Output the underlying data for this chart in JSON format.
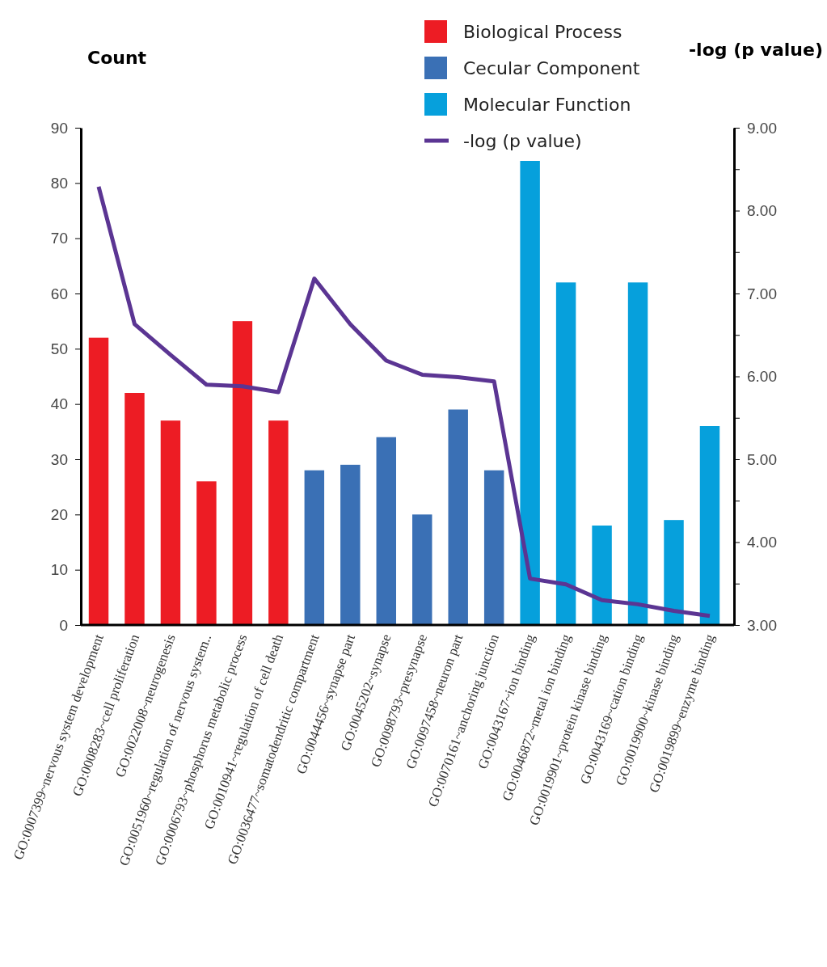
{
  "chart_data": {
    "type": "bar",
    "ylabel": "Count",
    "y2label": "-log (p value)",
    "legend": "top right",
    "categories": [
      "GO:0007399~nervous system development",
      "GO:0008283~cell proliferation",
      "GO:0022008~neurogenesis",
      "GO:0051960~regulation of nervous system..",
      "GO:0006793~phosphorus metabolic process",
      "GO:0010941~regulation of cell death",
      "GO:0036477~somatodendritic compartment",
      "GO:0044456~synapse part",
      "GO:0045202~synapse",
      "GO:0098793~presynapse",
      "GO:0097458~neuron part",
      "GO:0070161~anchoring junction",
      "GO:0043167~ion binding",
      "GO:0046872~metal ion binding",
      "GO:0019901~protein kinase binding",
      "GO:0043169~cation binding",
      "GO:0019900~kinase binding",
      "GO:0019899~enzyme binding"
    ],
    "series": [
      {
        "name": "Biological Process",
        "color": "#ed1c24",
        "values": [
          52,
          42,
          37,
          26,
          55,
          37,
          null,
          null,
          null,
          null,
          null,
          null,
          null,
          null,
          null,
          null,
          null,
          null
        ]
      },
      {
        "name": "Cecular Component",
        "color": "#3a70b5",
        "values": [
          null,
          null,
          null,
          null,
          null,
          null,
          28,
          29,
          34,
          20,
          39,
          28,
          null,
          null,
          null,
          null,
          null,
          null
        ]
      },
      {
        "name": "Molecular Function",
        "color": "#06a0dc",
        "values": [
          null,
          null,
          null,
          null,
          null,
          null,
          null,
          null,
          null,
          null,
          null,
          null,
          84,
          62,
          18,
          62,
          19,
          36
        ]
      },
      {
        "name": "-log (p value)",
        "type": "line",
        "axis": "y2",
        "color": "#5b3593",
        "values": [
          8.29,
          6.63,
          6.26,
          5.9,
          5.88,
          5.81,
          7.18,
          6.63,
          6.19,
          6.02,
          5.99,
          5.94,
          3.56,
          3.49,
          3.3,
          3.25,
          3.17,
          3.11
        ]
      }
    ],
    "ylim": [
      0,
      90
    ],
    "yticks": [
      0,
      10,
      20,
      30,
      40,
      50,
      60,
      70,
      80,
      90
    ],
    "y2lim": [
      3,
      9
    ],
    "y2ticks": [
      {
        "value": 3,
        "label": "3.00"
      },
      {
        "value": 3.5,
        "label": null
      },
      {
        "value": 4,
        "label": "4.00"
      },
      {
        "value": 4.5,
        "label": null
      },
      {
        "value": 5,
        "label": "5.00"
      },
      {
        "value": 5.5,
        "label": null
      },
      {
        "value": 6,
        "label": "6.00"
      },
      {
        "value": 6.5,
        "label": null
      },
      {
        "value": 7,
        "label": "7.00"
      },
      {
        "value": 7.5,
        "label": null
      },
      {
        "value": 8,
        "label": "8.00"
      },
      {
        "value": 8.5,
        "label": null
      },
      {
        "value": 9,
        "label": "9.00"
      }
    ]
  }
}
